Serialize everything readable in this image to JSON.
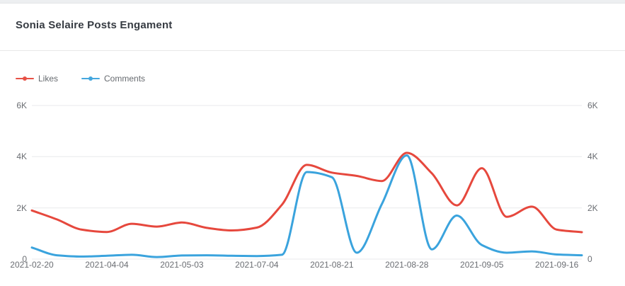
{
  "header": {
    "title": "Sonia Selaire Posts Engament"
  },
  "legend": {
    "items": [
      {
        "label": "Likes",
        "color": "#e6483d"
      },
      {
        "label": "Comments",
        "color": "#3aa3dd"
      }
    ]
  },
  "chart_data": {
    "type": "line",
    "title": "Sonia Selaire Posts Engament",
    "smooth": true,
    "grid": "horizontal",
    "legend_position": "top-left",
    "num_points": 23,
    "x_tick_labels": [
      "2021-02-20",
      "2021-04-04",
      "2021-05-03",
      "2021-07-04",
      "2021-08-21",
      "2021-08-28",
      "2021-09-05",
      "2021-09-16"
    ],
    "x_tick_indices": [
      0,
      3,
      6,
      9,
      12,
      15,
      18,
      21
    ],
    "y_axis": {
      "min": 0,
      "max": 6000,
      "dual": true,
      "ticks": [
        {
          "value": 0,
          "label": "0"
        },
        {
          "value": 2000,
          "label": "2K"
        },
        {
          "value": 4000,
          "label": "4K"
        },
        {
          "value": 6000,
          "label": "6K"
        }
      ]
    },
    "series": [
      {
        "name": "Likes",
        "color": "#e6483d",
        "values": [
          1900,
          1550,
          1150,
          1060,
          1380,
          1270,
          1430,
          1220,
          1120,
          1230,
          2120,
          3680,
          3380,
          3250,
          3050,
          4150,
          3350,
          2100,
          3550,
          1650,
          2050,
          1150,
          1050
        ]
      },
      {
        "name": "Comments",
        "color": "#3aa3dd",
        "values": [
          450,
          150,
          100,
          130,
          170,
          80,
          140,
          150,
          130,
          120,
          170,
          3400,
          3200,
          250,
          2150,
          4050,
          380,
          1700,
          550,
          250,
          300,
          180,
          150
        ]
      }
    ]
  }
}
